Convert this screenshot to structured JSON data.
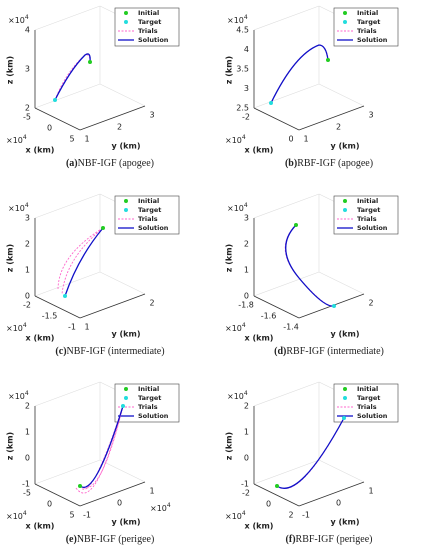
{
  "panels": [
    {
      "label": "(a)",
      "caption": "NBF-IGF (apogee)",
      "legend": [
        "Initial",
        "Target",
        "Trials",
        "Solution"
      ],
      "xlabel": "x (km)",
      "ylabel": "y (km)",
      "zlabel": "z (km)",
      "zticks": [
        "2",
        "3",
        "4"
      ],
      "xticks": [
        "-5",
        "0",
        "5"
      ],
      "yticks": [
        "1",
        "2",
        "3"
      ],
      "zmult": {
        "base": "×10",
        "exp": "4"
      },
      "xmult": {
        "base": "×10",
        "exp": "4"
      }
    },
    {
      "label": "(b)",
      "caption": "RBF-IGF (apogee)",
      "legend": [
        "Initial",
        "Target",
        "Trials",
        "Solution"
      ],
      "xlabel": "x (km)",
      "ylabel": "y (km)",
      "zlabel": "z (km)",
      "zticks": [
        "2.5",
        "3",
        "3.5",
        "4",
        "4.5"
      ],
      "xticks": [
        "-2",
        "0"
      ],
      "yticks": [
        "1",
        "2",
        "3"
      ],
      "zmult": {
        "base": "×10",
        "exp": "4"
      },
      "xmult": {
        "base": "×10",
        "exp": "4"
      }
    },
    {
      "label": "(c)",
      "caption": "NBF-IGF (intermediate)",
      "legend": [
        "Initial",
        "Target",
        "Trials",
        "Solution"
      ],
      "xlabel": "x (km)",
      "ylabel": "y (km)",
      "zlabel": "z (km)",
      "zticks": [
        "0",
        "1",
        "2",
        "3"
      ],
      "xticks": [
        "-2",
        "-1.5",
        "-1"
      ],
      "yticks": [
        "1",
        "2"
      ],
      "zmult": {
        "base": "×10",
        "exp": "4"
      },
      "xmult": {
        "base": "×10",
        "exp": "4"
      }
    },
    {
      "label": "(d)",
      "caption": "RBF-IGF (intermediate)",
      "legend": [
        "Initial",
        "Target",
        "Trials",
        "Solution"
      ],
      "xlabel": "x (km)",
      "ylabel": "y (km)",
      "zlabel": "z (km)",
      "zticks": [
        "0",
        "1",
        "2",
        "3"
      ],
      "xticks": [
        "-1.8",
        "-1.6",
        "-1.4"
      ],
      "yticks": [
        "2"
      ],
      "zmult": {
        "base": "×10",
        "exp": "4"
      },
      "xmult": {
        "base": "×10",
        "exp": "4"
      }
    },
    {
      "label": "(e)",
      "caption": "NBF-IGF (perigee)",
      "legend": [
        "Initial",
        "Target",
        "Trials",
        "Solution"
      ],
      "xlabel": "x (km)",
      "ylabel": "y (km)",
      "zlabel": "z (km)",
      "zticks": [
        "-1",
        "0",
        "1",
        "2"
      ],
      "xticks": [
        "-5",
        "0",
        "5"
      ],
      "yticks": [
        "-1",
        "0",
        "1"
      ],
      "zmult": {
        "base": "×10",
        "exp": "4"
      },
      "xmult": {
        "base": "×10",
        "exp": "4"
      },
      "ymult": {
        "base": "×10",
        "exp": "4"
      }
    },
    {
      "label": "(f)",
      "caption": "RBF-IGF (perigee)",
      "legend": [
        "Initial",
        "Target",
        "Trials",
        "Solution"
      ],
      "xlabel": "x (km)",
      "ylabel": "y (km)",
      "zlabel": "z (km)",
      "zticks": [
        "-1",
        "0",
        "1",
        "2"
      ],
      "xticks": [
        "-2",
        "0",
        "2"
      ],
      "yticks": [
        "-1",
        "0",
        "1"
      ],
      "zmult": {
        "base": "×10",
        "exp": "4"
      },
      "xmult": {
        "base": "×10",
        "exp": "4"
      }
    }
  ]
}
